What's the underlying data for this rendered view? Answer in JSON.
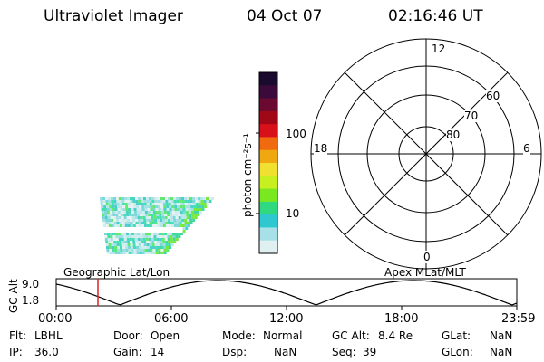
{
  "header": {
    "instrument": "Ultraviolet Imager",
    "date": "04 Oct 07",
    "time": "02:16:46 UT"
  },
  "colorbar": {
    "unit_label": "photon cm⁻²s⁻¹",
    "ticks": [
      "100",
      "10"
    ],
    "colors": [
      "#1a0a2e",
      "#3b0a3a",
      "#6a0a30",
      "#a00818",
      "#d8101a",
      "#f06a10",
      "#f0a810",
      "#f0e030",
      "#c8f020",
      "#7ae820",
      "#30d880",
      "#30c8d0",
      "#a8e0e8",
      "#e0f0f0"
    ]
  },
  "polar": {
    "mlt_labels": {
      "top": "12",
      "left": "18",
      "right": "6",
      "bottom": "0"
    },
    "lat_labels": [
      "60",
      "70",
      "80"
    ]
  },
  "timeline": {
    "left_label": "Geographic Lat/Lon",
    "right_label": "Apex MLat/MLT",
    "y_axis_label": "GC Alt",
    "y_ticks": [
      "9.0",
      "1.8"
    ],
    "x_ticks": [
      "00:00",
      "06:00",
      "12:00",
      "18:00",
      "23:59"
    ],
    "marker_time": "02:16:46"
  },
  "info": {
    "filter_label": "Flt:",
    "filter_value": "LBHL",
    "ip_label": "IP:",
    "ip_value": "36.0",
    "door_label": "Door:",
    "door_value": "Open",
    "gain_label": "Gain:",
    "gain_value": "14",
    "mode_label": "Mode:",
    "mode_value": "Normal",
    "dsp_label": "Dsp:",
    "dsp_value": "NaN",
    "gcalt_label": "GC Alt:",
    "gcalt_value": "8.4 Re",
    "seq_label": "Seq:",
    "seq_value": "39",
    "glat_label": "GLat:",
    "glat_value": "NaN",
    "glon_label": "GLon:",
    "glon_value": "NaN"
  }
}
